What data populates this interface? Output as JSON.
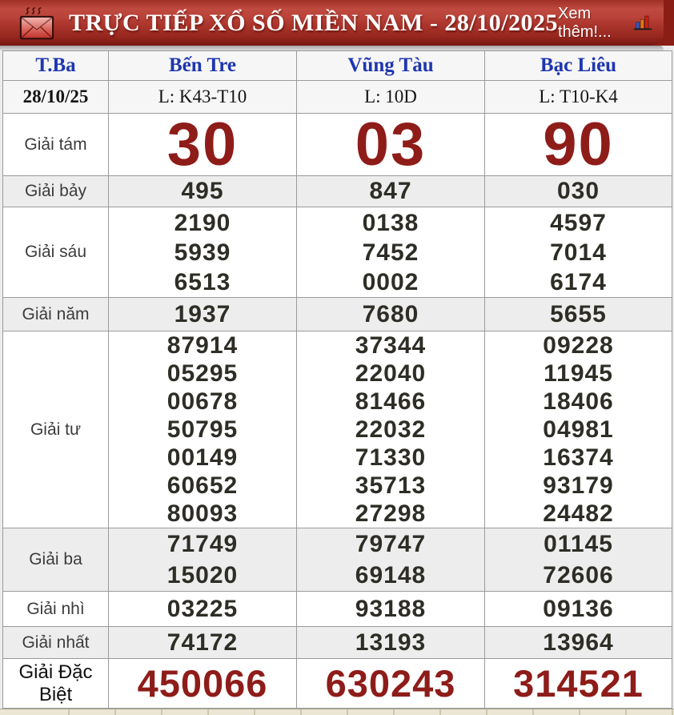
{
  "header": {
    "title": "TRỰC TIẾP XỔ SỐ MIỀN NAM - 28/10/2025",
    "more_label": "Xem thêm!...",
    "envelope_icon": "hot-mail-icon",
    "chart_icon": "bar-chart-icon"
  },
  "table": {
    "columns": [
      "T.Ba",
      "Bến Tre",
      "Vũng Tàu",
      "Bạc Liêu"
    ],
    "date_row": {
      "label": "28/10/25",
      "values": [
        "L: K43-T10",
        "L: 10D",
        "L: T10-K4"
      ]
    },
    "prizes": [
      {
        "key": "tam",
        "label": "Giải tám",
        "emphasis": "big-red",
        "values": [
          [
            "30"
          ],
          [
            "03"
          ],
          [
            "90"
          ]
        ]
      },
      {
        "key": "bay",
        "label": "Giải bảy",
        "values": [
          [
            "495"
          ],
          [
            "847"
          ],
          [
            "030"
          ]
        ]
      },
      {
        "key": "sau",
        "label": "Giải sáu",
        "values": [
          [
            "2190",
            "5939",
            "6513"
          ],
          [
            "0138",
            "7452",
            "0002"
          ],
          [
            "4597",
            "7014",
            "6174"
          ]
        ]
      },
      {
        "key": "nam",
        "label": "Giải năm",
        "values": [
          [
            "1937"
          ],
          [
            "7680"
          ],
          [
            "5655"
          ]
        ]
      },
      {
        "key": "tu",
        "label": "Giải tư",
        "values": [
          [
            "87914",
            "05295",
            "00678",
            "50795",
            "00149",
            "60652",
            "80093"
          ],
          [
            "37344",
            "22040",
            "81466",
            "22032",
            "71330",
            "35713",
            "27298"
          ],
          [
            "09228",
            "11945",
            "18406",
            "04981",
            "16374",
            "93179",
            "24482"
          ]
        ]
      },
      {
        "key": "ba",
        "label": "Giải ba",
        "values": [
          [
            "71749",
            "15020"
          ],
          [
            "79747",
            "69148"
          ],
          [
            "01145",
            "72606"
          ]
        ]
      },
      {
        "key": "nhi",
        "label": "Giải nhì",
        "values": [
          [
            "03225"
          ],
          [
            "93188"
          ],
          [
            "09136"
          ]
        ]
      },
      {
        "key": "nhat",
        "label": "Giải nhất",
        "values": [
          [
            "74172"
          ],
          [
            "13193"
          ],
          [
            "13964"
          ]
        ]
      },
      {
        "key": "db",
        "label": "Giải Đặc Biệt",
        "emphasis": "special-red",
        "values": [
          [
            "450066"
          ],
          [
            "630243"
          ],
          [
            "314521"
          ]
        ]
      }
    ]
  },
  "colors": {
    "banner_red": "#b23a31",
    "banner_dark_edge": "#8a1e16",
    "prize_red": "#8e1c19",
    "link_blue": "#1e36b0",
    "number_dark": "#2e2d26",
    "row_shade": "#ededed",
    "header_row_bg": "#f6f6f6",
    "footer_cream": "#eae6d3"
  }
}
